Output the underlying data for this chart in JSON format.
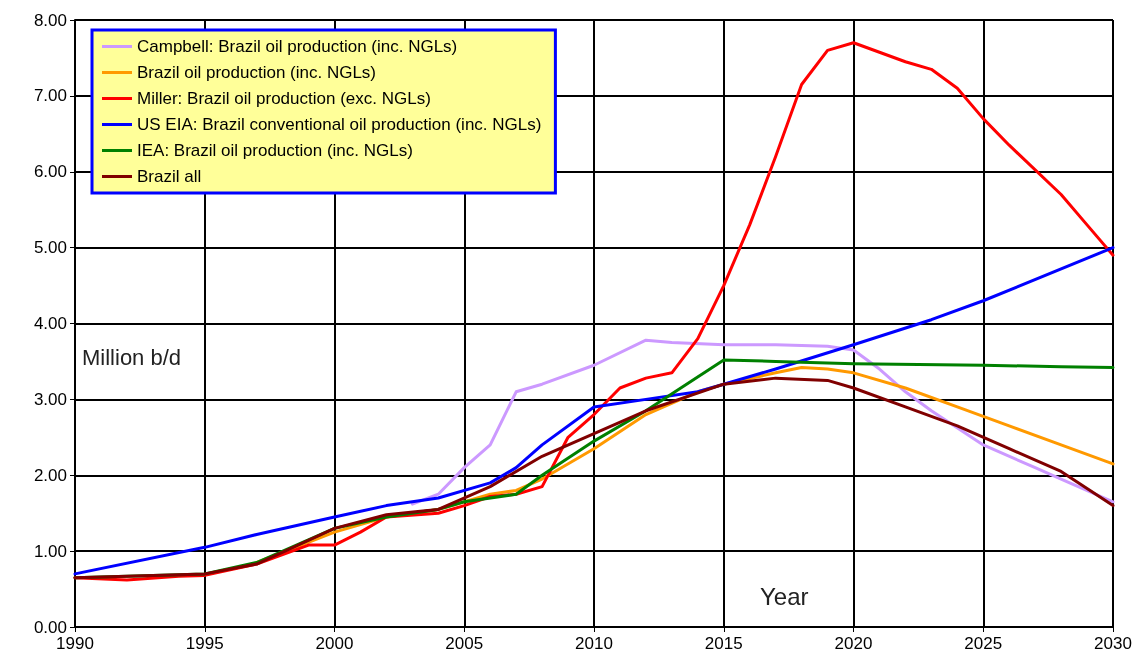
{
  "chart_data": {
    "type": "line",
    "xlabel": "Year",
    "ylabel": "Million b/d",
    "xlim": [
      1990,
      2030
    ],
    "xticks": [
      1990,
      1995,
      2000,
      2005,
      2010,
      2015,
      2020,
      2025,
      2030
    ],
    "ylim": [
      0,
      8
    ],
    "yticks": [
      {
        "value": 0,
        "label": "0.00"
      },
      {
        "value": 1,
        "label": "1.00"
      },
      {
        "value": 2,
        "label": "2.00"
      },
      {
        "value": 3,
        "label": "3.00"
      },
      {
        "value": 4,
        "label": "4.00"
      },
      {
        "value": 5,
        "label": "5.00"
      },
      {
        "value": 6,
        "label": "6.00"
      },
      {
        "value": 7,
        "label": "7.00"
      },
      {
        "value": 8,
        "label": "8.00"
      }
    ],
    "grid": true,
    "legend": "top left",
    "marker": "none",
    "line_style": "solid",
    "series": [
      {
        "name": "Campbell: Brazil oil production (inc. NGLs)",
        "color": "#cc99ff",
        "x": [
          2003,
          2004,
          2005,
          2006,
          2007,
          2008,
          2010,
          2012,
          2013,
          2015,
          2017,
          2019,
          2020,
          2021,
          2022,
          2023,
          2025,
          2027,
          2028,
          2030
        ],
        "values": [
          1.62,
          1.75,
          2.1,
          2.4,
          3.1,
          3.2,
          3.45,
          3.78,
          3.75,
          3.72,
          3.72,
          3.7,
          3.65,
          3.4,
          3.1,
          2.85,
          2.4,
          2.1,
          1.95,
          1.65
        ]
      },
      {
        "name": "Brazil oil production (inc. NGLs)",
        "color": "#ff9900",
        "x": [
          1997,
          2000,
          2002,
          2004,
          2006,
          2007,
          2008,
          2010,
          2012,
          2014,
          2015,
          2017,
          2018,
          2019,
          2020,
          2022,
          2024,
          2026,
          2028,
          2030
        ],
        "values": [
          0.85,
          1.25,
          1.45,
          1.55,
          1.75,
          1.8,
          1.95,
          2.35,
          2.8,
          3.1,
          3.2,
          3.35,
          3.42,
          3.4,
          3.35,
          3.15,
          2.9,
          2.65,
          2.4,
          2.15
        ]
      },
      {
        "name": "Miller: Brazil oil production (exc. NGLs)",
        "color": "#ff0000",
        "x": [
          1990,
          1992,
          1994,
          1995,
          1997,
          1999,
          2000,
          2001,
          2002,
          2004,
          2005,
          2006,
          2007,
          2008,
          2009,
          2010,
          2011,
          2012,
          2013,
          2014,
          2015,
          2016,
          2017,
          2018,
          2019,
          2020,
          2022,
          2023,
          2024,
          2025,
          2026,
          2028,
          2029,
          2030
        ],
        "values": [
          0.65,
          0.62,
          0.67,
          0.68,
          0.83,
          1.08,
          1.08,
          1.25,
          1.45,
          1.5,
          1.6,
          1.72,
          1.75,
          1.85,
          2.5,
          2.8,
          3.15,
          3.28,
          3.35,
          3.8,
          4.5,
          5.3,
          6.2,
          7.15,
          7.6,
          7.7,
          7.45,
          7.35,
          7.1,
          6.7,
          6.35,
          5.7,
          5.3,
          4.9
        ]
      },
      {
        "name": "US EIA: Brazil conventional oil production (inc. NGLs)",
        "color": "#0000ff",
        "x": [
          1990,
          1995,
          1997,
          2000,
          2002,
          2004,
          2006,
          2007,
          2008,
          2010,
          2012,
          2014,
          2015,
          2017,
          2020,
          2023,
          2025,
          2030
        ],
        "values": [
          0.7,
          1.05,
          1.22,
          1.45,
          1.6,
          1.7,
          1.9,
          2.1,
          2.4,
          2.9,
          3.0,
          3.1,
          3.2,
          3.4,
          3.72,
          4.05,
          4.3,
          5.0
        ]
      },
      {
        "name": "IEA: Brazil oil production (inc. NGLs)",
        "color": "#008000",
        "x": [
          1990,
          1995,
          1997,
          2000,
          2002,
          2004,
          2005,
          2007,
          2008,
          2010,
          2012,
          2015,
          2017,
          2020,
          2025,
          2028,
          2030
        ],
        "values": [
          0.65,
          0.7,
          0.85,
          1.3,
          1.45,
          1.55,
          1.65,
          1.75,
          2.0,
          2.45,
          2.85,
          3.52,
          3.5,
          3.47,
          3.45,
          3.43,
          3.42
        ]
      },
      {
        "name": "Brazil all",
        "color": "#800000",
        "x": [
          1990,
          1995,
          1997,
          2000,
          2002,
          2004,
          2006,
          2008,
          2010,
          2012,
          2015,
          2017,
          2019,
          2020,
          2022,
          2024,
          2026,
          2028,
          2030
        ],
        "values": [
          0.65,
          0.7,
          0.83,
          1.3,
          1.48,
          1.55,
          1.85,
          2.25,
          2.55,
          2.85,
          3.2,
          3.28,
          3.25,
          3.15,
          2.9,
          2.65,
          2.35,
          2.05,
          1.6
        ]
      }
    ]
  }
}
